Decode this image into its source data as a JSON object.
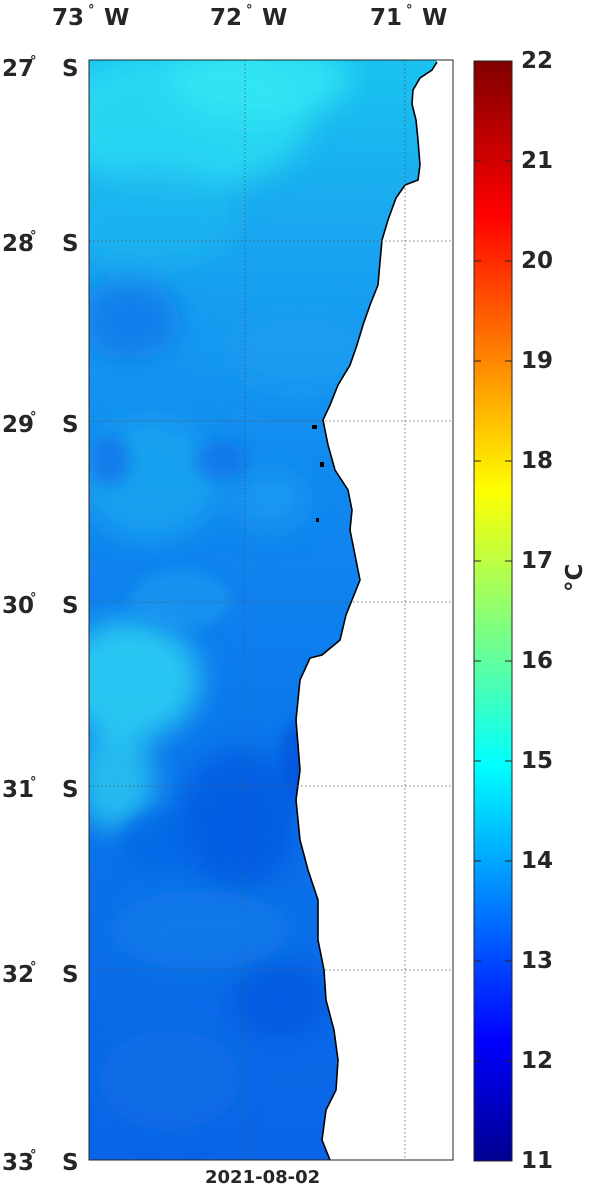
{
  "map": {
    "lon_labels": [
      {
        "deg": "73",
        "dir": "W"
      },
      {
        "deg": "72",
        "dir": "W"
      },
      {
        "deg": "71",
        "dir": "W"
      }
    ],
    "lat_labels": [
      {
        "deg": "27",
        "dir": "S"
      },
      {
        "deg": "28",
        "dir": "S"
      },
      {
        "deg": "29",
        "dir": "S"
      },
      {
        "deg": "30",
        "dir": "S"
      },
      {
        "deg": "31",
        "dir": "S"
      },
      {
        "deg": "32",
        "dir": "S"
      },
      {
        "deg": "33",
        "dir": "S"
      }
    ],
    "degree_symbol": "°",
    "date": "2021-08-02"
  },
  "colorbar": {
    "ticks": [
      "22",
      "21",
      "20",
      "19",
      "18",
      "17",
      "16",
      "15",
      "14",
      "13",
      "12",
      "11"
    ],
    "unit": "°C",
    "range": [
      11,
      22
    ],
    "colormap": "jet"
  },
  "colors": {
    "land": "#ffffff",
    "coast": "#000000",
    "sea_base": "#0d6cf0"
  }
}
